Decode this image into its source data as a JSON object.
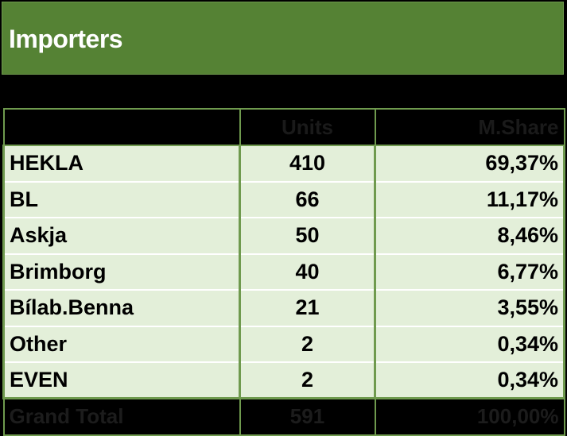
{
  "title": "Importers",
  "table": {
    "headers": {
      "name": "",
      "units": "Units",
      "share": "M.Share"
    },
    "rows": [
      {
        "name": "HEKLA",
        "units": "410",
        "share": "69,37%"
      },
      {
        "name": "BL",
        "units": "66",
        "share": "11,17%"
      },
      {
        "name": "Askja",
        "units": "50",
        "share": "8,46%"
      },
      {
        "name": "Brimborg",
        "units": "40",
        "share": "6,77%"
      },
      {
        "name": "Bílab.Benna",
        "units": "21",
        "share": "3,55%"
      },
      {
        "name": "Other",
        "units": "2",
        "share": "0,34%"
      },
      {
        "name": "EVEN",
        "units": "2",
        "share": "0,34%"
      }
    ],
    "total": {
      "name": "Grand Total",
      "units": "591",
      "share": "100,00%"
    }
  },
  "colors": {
    "title_bg": "#558234",
    "row_bg": "#e3efd9",
    "border": "#6f9a4e"
  }
}
